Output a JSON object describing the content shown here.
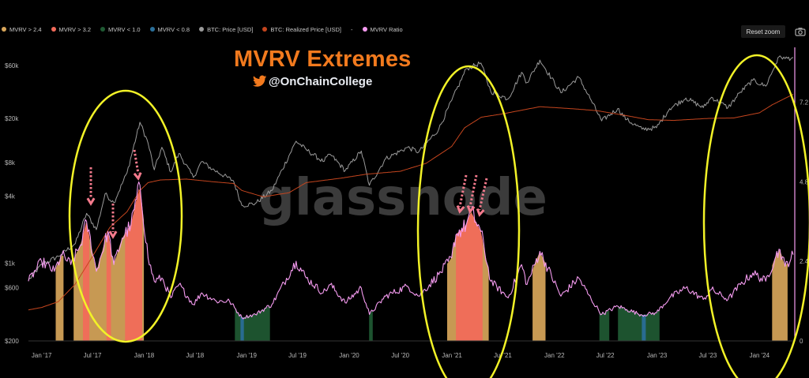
{
  "legend": [
    {
      "label": "MVRV > 2.4",
      "color": "#d8a65a"
    },
    {
      "label": "MVRV > 3.2",
      "color": "#f26a5a"
    },
    {
      "label": "MVRV < 1.0",
      "color": "#1f5a33"
    },
    {
      "label": "MVRV < 0.8",
      "color": "#2a6f9a"
    },
    {
      "label": "BTC: Price [USD]",
      "color": "#9a9a9a"
    },
    {
      "label": "BTC: Realized Price [USD]",
      "color": "#c4451e"
    },
    {
      "label": "-",
      "color": ""
    },
    {
      "label": "MVRV Ratio",
      "color": "#f59bf0"
    }
  ],
  "toolbar": {
    "reset_label": "Reset zoom",
    "camera_icon": "camera-icon"
  },
  "overlay": {
    "title": "MVRV Extremes",
    "handle": "@OnChainCollege",
    "twitter_icon": "twitter-bird-icon",
    "watermark": "glassnode"
  },
  "chart_data": {
    "type": "line",
    "x_axis": {
      "type": "date",
      "range": [
        "2016-11-15",
        "2024-04-30"
      ],
      "ticks": [
        "Jan '17",
        "Jul '17",
        "Jan '18",
        "Jul '18",
        "Jan '19",
        "Jul '19",
        "Jan '20",
        "Jul '20",
        "Jan '21",
        "Jul '21",
        "Jan '22",
        "Jul '22",
        "Jan '23",
        "Jul '23",
        "Jan '24"
      ]
    },
    "y_left": {
      "scale": "log",
      "range": [
        200,
        90000
      ],
      "ticks": [
        "$200",
        "$600",
        "$1k",
        "$4k",
        "$8k",
        "$20k",
        "$60k"
      ]
    },
    "y_right": {
      "scale": "linear",
      "range": [
        0,
        8.9
      ],
      "ticks": [
        "0",
        "2.4",
        "4.8",
        "7.2"
      ]
    },
    "series": [
      {
        "name": "BTC: Price [USD]",
        "axis": "left",
        "color": "#9a9a9a",
        "points": [
          [
            "2016-11-15",
            700
          ],
          [
            "2017-01-01",
            970
          ],
          [
            "2017-03-01",
            1150
          ],
          [
            "2017-05-01",
            1500
          ],
          [
            "2017-06-10",
            2800
          ],
          [
            "2017-07-15",
            2000
          ],
          [
            "2017-08-15",
            4200
          ],
          [
            "2017-09-15",
            3500
          ],
          [
            "2017-11-01",
            6500
          ],
          [
            "2017-12-17",
            18500
          ],
          [
            "2018-01-15",
            12000
          ],
          [
            "2018-02-06",
            6900
          ],
          [
            "2018-03-05",
            11000
          ],
          [
            "2018-04-06",
            6600
          ],
          [
            "2018-05-05",
            9700
          ],
          [
            "2018-06-25",
            5900
          ],
          [
            "2018-07-25",
            8200
          ],
          [
            "2018-09-01",
            7000
          ],
          [
            "2018-11-15",
            5500
          ],
          [
            "2018-12-15",
            3300
          ],
          [
            "2019-02-01",
            3450
          ],
          [
            "2019-04-01",
            4500
          ],
          [
            "2019-06-26",
            12500
          ],
          [
            "2019-08-01",
            10500
          ],
          [
            "2019-09-30",
            8200
          ],
          [
            "2019-10-26",
            9500
          ],
          [
            "2019-12-18",
            6800
          ],
          [
            "2020-02-13",
            10200
          ],
          [
            "2020-03-13",
            5000
          ],
          [
            "2020-05-10",
            8700
          ],
          [
            "2020-07-27",
            11000
          ],
          [
            "2020-09-05",
            10000
          ],
          [
            "2020-11-15",
            16000
          ],
          [
            "2020-12-31",
            29000
          ],
          [
            "2021-02-21",
            56000
          ],
          [
            "2021-04-14",
            63000
          ],
          [
            "2021-05-19",
            35000
          ],
          [
            "2021-07-20",
            30000
          ],
          [
            "2021-09-06",
            52000
          ],
          [
            "2021-09-25",
            42000
          ],
          [
            "2021-11-10",
            67000
          ],
          [
            "2022-01-24",
            34000
          ],
          [
            "2022-03-28",
            47000
          ],
          [
            "2022-05-12",
            29000
          ],
          [
            "2022-06-18",
            19000
          ],
          [
            "2022-08-14",
            24500
          ],
          [
            "2022-09-15",
            19500
          ],
          [
            "2022-11-09",
            16000
          ],
          [
            "2022-12-30",
            16500
          ],
          [
            "2023-02-15",
            24500
          ],
          [
            "2023-04-14",
            30500
          ],
          [
            "2023-06-15",
            25000
          ],
          [
            "2023-07-14",
            31000
          ],
          [
            "2023-09-11",
            25000
          ],
          [
            "2023-10-25",
            34500
          ],
          [
            "2023-12-08",
            44000
          ],
          [
            "2024-01-23",
            39000
          ],
          [
            "2024-02-28",
            62000
          ],
          [
            "2024-03-14",
            73000
          ],
          [
            "2024-04-01",
            69000
          ],
          [
            "2024-04-30",
            70500
          ]
        ]
      },
      {
        "name": "BTC: Realized Price [USD]",
        "axis": "left",
        "color": "#c4451e",
        "points": [
          [
            "2016-11-15",
            380
          ],
          [
            "2017-01-01",
            400
          ],
          [
            "2017-03-01",
            450
          ],
          [
            "2017-05-01",
            650
          ],
          [
            "2017-07-01",
            1150
          ],
          [
            "2017-09-01",
            2100
          ],
          [
            "2017-11-01",
            2900
          ],
          [
            "2017-12-17",
            4500
          ],
          [
            "2018-01-15",
            5300
          ],
          [
            "2018-03-01",
            5600
          ],
          [
            "2018-06-01",
            5700
          ],
          [
            "2018-09-01",
            5400
          ],
          [
            "2018-11-15",
            5200
          ],
          [
            "2018-12-15",
            4500
          ],
          [
            "2019-03-01",
            3950
          ],
          [
            "2019-06-01",
            4300
          ],
          [
            "2019-08-01",
            5300
          ],
          [
            "2019-12-01",
            5800
          ],
          [
            "2020-03-01",
            6300
          ],
          [
            "2020-07-01",
            6700
          ],
          [
            "2020-10-01",
            7900
          ],
          [
            "2020-12-31",
            11200
          ],
          [
            "2021-02-15",
            16500
          ],
          [
            "2021-04-15",
            20500
          ],
          [
            "2021-07-01",
            22000
          ],
          [
            "2021-11-10",
            25500
          ],
          [
            "2022-03-01",
            24500
          ],
          [
            "2022-06-01",
            23500
          ],
          [
            "2022-09-01",
            21500
          ],
          [
            "2022-12-01",
            19500
          ],
          [
            "2023-03-01",
            19200
          ],
          [
            "2023-07-01",
            20000
          ],
          [
            "2023-10-01",
            20200
          ],
          [
            "2024-01-01",
            22500
          ],
          [
            "2024-02-15",
            26500
          ],
          [
            "2024-04-30",
            33000
          ]
        ]
      },
      {
        "name": "MVRV Ratio",
        "axis": "right",
        "color": "#f59bf0",
        "points": [
          [
            "2016-11-15",
            1.8
          ],
          [
            "2017-01-01",
            2.4
          ],
          [
            "2017-02-15",
            2.1
          ],
          [
            "2017-03-15",
            2.6
          ],
          [
            "2017-04-15",
            2.3
          ],
          [
            "2017-05-20",
            2.9
          ],
          [
            "2017-06-10",
            3.6
          ],
          [
            "2017-07-15",
            2.1
          ],
          [
            "2017-08-25",
            3.3
          ],
          [
            "2017-09-15",
            2.3
          ],
          [
            "2017-10-15",
            3.1
          ],
          [
            "2017-11-15",
            3.5
          ],
          [
            "2017-12-17",
            4.7
          ],
          [
            "2018-01-15",
            2.5
          ],
          [
            "2018-02-06",
            1.8
          ],
          [
            "2018-03-05",
            1.9
          ],
          [
            "2018-04-06",
            1.3
          ],
          [
            "2018-05-05",
            1.7
          ],
          [
            "2018-06-25",
            1.1
          ],
          [
            "2018-07-25",
            1.45
          ],
          [
            "2018-09-15",
            1.2
          ],
          [
            "2018-11-01",
            1.2
          ],
          [
            "2018-12-15",
            0.7
          ],
          [
            "2019-02-01",
            0.8
          ],
          [
            "2019-04-01",
            1.1
          ],
          [
            "2019-06-26",
            2.4
          ],
          [
            "2019-08-01",
            1.9
          ],
          [
            "2019-09-30",
            1.45
          ],
          [
            "2019-10-26",
            1.7
          ],
          [
            "2019-12-18",
            1.15
          ],
          [
            "2020-02-13",
            1.6
          ],
          [
            "2020-03-13",
            0.8
          ],
          [
            "2020-05-10",
            1.35
          ],
          [
            "2020-07-27",
            1.65
          ],
          [
            "2020-09-05",
            1.35
          ],
          [
            "2020-11-15",
            2.0
          ],
          [
            "2020-12-31",
            2.5
          ],
          [
            "2021-01-15",
            3.2
          ],
          [
            "2021-02-21",
            3.5
          ],
          [
            "2021-03-10",
            3.9
          ],
          [
            "2021-04-14",
            3.3
          ],
          [
            "2021-05-19",
            1.8
          ],
          [
            "2021-07-20",
            1.3
          ],
          [
            "2021-09-06",
            2.3
          ],
          [
            "2021-09-25",
            1.7
          ],
          [
            "2021-11-10",
            2.7
          ],
          [
            "2022-01-24",
            1.35
          ],
          [
            "2022-03-28",
            1.9
          ],
          [
            "2022-05-12",
            1.25
          ],
          [
            "2022-06-18",
            0.8
          ],
          [
            "2022-08-14",
            1.05
          ],
          [
            "2022-09-15",
            0.95
          ],
          [
            "2022-11-09",
            0.78
          ],
          [
            "2022-12-30",
            0.85
          ],
          [
            "2023-02-15",
            1.3
          ],
          [
            "2023-04-14",
            1.6
          ],
          [
            "2023-06-15",
            1.25
          ],
          [
            "2023-07-14",
            1.55
          ],
          [
            "2023-09-11",
            1.25
          ],
          [
            "2023-10-25",
            1.7
          ],
          [
            "2023-12-08",
            2.05
          ],
          [
            "2024-01-23",
            1.8
          ],
          [
            "2024-02-28",
            2.55
          ],
          [
            "2024-03-14",
            2.75
          ],
          [
            "2024-04-01",
            2.25
          ],
          [
            "2024-04-30",
            2.6
          ]
        ]
      }
    ],
    "zones": [
      {
        "label": "MVRV > 2.4",
        "color": "#d8a65a",
        "ranges": [
          [
            "2017-02-20",
            "2017-03-20"
          ],
          [
            "2017-04-25",
            "2017-12-31"
          ],
          [
            "2020-12-15",
            "2021-05-12"
          ],
          [
            "2021-10-15",
            "2021-11-30"
          ],
          [
            "2024-02-15",
            "2024-04-10"
          ]
        ]
      },
      {
        "label": "MVRV > 3.2",
        "color": "#f26a5a",
        "ranges": [
          [
            "2017-05-28",
            "2017-06-20"
          ],
          [
            "2017-08-20",
            "2017-09-05"
          ],
          [
            "2017-10-25",
            "2017-12-25"
          ],
          [
            "2021-01-15",
            "2021-04-20"
          ]
        ]
      },
      {
        "label": "MVRV < 1.0",
        "color": "#1f5a33",
        "ranges": [
          [
            "2018-11-20",
            "2019-03-25"
          ],
          [
            "2020-03-12",
            "2020-03-25"
          ],
          [
            "2022-06-10",
            "2022-07-15"
          ],
          [
            "2022-08-15",
            "2023-01-10"
          ]
        ]
      },
      {
        "label": "MVRV < 0.8",
        "color": "#2a6f9a",
        "ranges": [
          [
            "2018-12-10",
            "2018-12-22"
          ],
          [
            "2022-11-08",
            "2022-11-22"
          ]
        ]
      }
    ]
  }
}
